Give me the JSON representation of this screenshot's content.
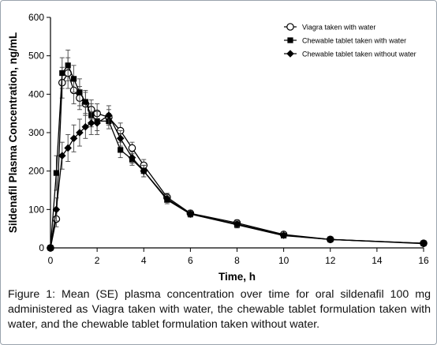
{
  "chart_data": {
    "type": "line",
    "xlabel": "Time, h",
    "ylabel": "Sildenafil Plasma Concentration, ng/mL",
    "xlim": [
      0,
      16
    ],
    "ylim": [
      0,
      600
    ],
    "xticks": [
      "0",
      "2",
      "4",
      "6",
      "8",
      "10",
      "12",
      "14",
      "16"
    ],
    "yticks": [
      "0",
      "100",
      "200",
      "300",
      "400",
      "500",
      "600"
    ],
    "grid": false,
    "legend_position": "top-right",
    "error_bars": "SE",
    "series": [
      {
        "name": "Viagra taken with water",
        "marker": "open-circle",
        "color": "#000000",
        "x": [
          0,
          0.25,
          0.5,
          0.75,
          1,
          1.25,
          1.5,
          1.75,
          2,
          2.5,
          3,
          3.5,
          4,
          5,
          6,
          8,
          10,
          12,
          16
        ],
        "y": [
          0,
          75,
          430,
          455,
          410,
          390,
          375,
          360,
          350,
          340,
          305,
          260,
          215,
          132,
          90,
          65,
          35,
          22,
          12
        ],
        "se": [
          0,
          20,
          40,
          40,
          35,
          30,
          30,
          25,
          25,
          20,
          20,
          15,
          15,
          10,
          8,
          8,
          6,
          4,
          3
        ]
      },
      {
        "name": "Chewable tablet taken with water",
        "marker": "filled-square",
        "color": "#000000",
        "x": [
          0,
          0.25,
          0.5,
          0.75,
          1,
          1.25,
          1.5,
          1.75,
          2,
          2.5,
          3,
          3.5,
          4,
          5,
          6,
          8,
          10,
          12,
          16
        ],
        "y": [
          0,
          195,
          455,
          475,
          440,
          405,
          380,
          345,
          330,
          330,
          255,
          230,
          200,
          125,
          88,
          60,
          32,
          22,
          12
        ],
        "se": [
          0,
          45,
          40,
          40,
          35,
          35,
          30,
          30,
          25,
          20,
          20,
          15,
          15,
          10,
          8,
          8,
          6,
          4,
          3
        ]
      },
      {
        "name": "Chewable tablet taken without water",
        "marker": "filled-diamond",
        "color": "#000000",
        "x": [
          0,
          0.25,
          0.5,
          0.75,
          1,
          1.25,
          1.5,
          1.75,
          2,
          2.5,
          3,
          3.5,
          4,
          5,
          6,
          8,
          10,
          12,
          16
        ],
        "y": [
          0,
          100,
          240,
          260,
          285,
          300,
          315,
          325,
          325,
          345,
          285,
          235,
          200,
          128,
          88,
          62,
          33,
          22,
          11
        ],
        "se": [
          0,
          30,
          35,
          35,
          35,
          35,
          30,
          30,
          30,
          25,
          20,
          15,
          15,
          10,
          8,
          8,
          6,
          4,
          3
        ]
      }
    ]
  },
  "caption": "Figure 1: Mean (SE) plasma concentration over time for oral sildenafil 100 mg administered as Viagra taken with water, the chewable tablet formulation taken with water, and the chewable tablet formulation taken without water."
}
